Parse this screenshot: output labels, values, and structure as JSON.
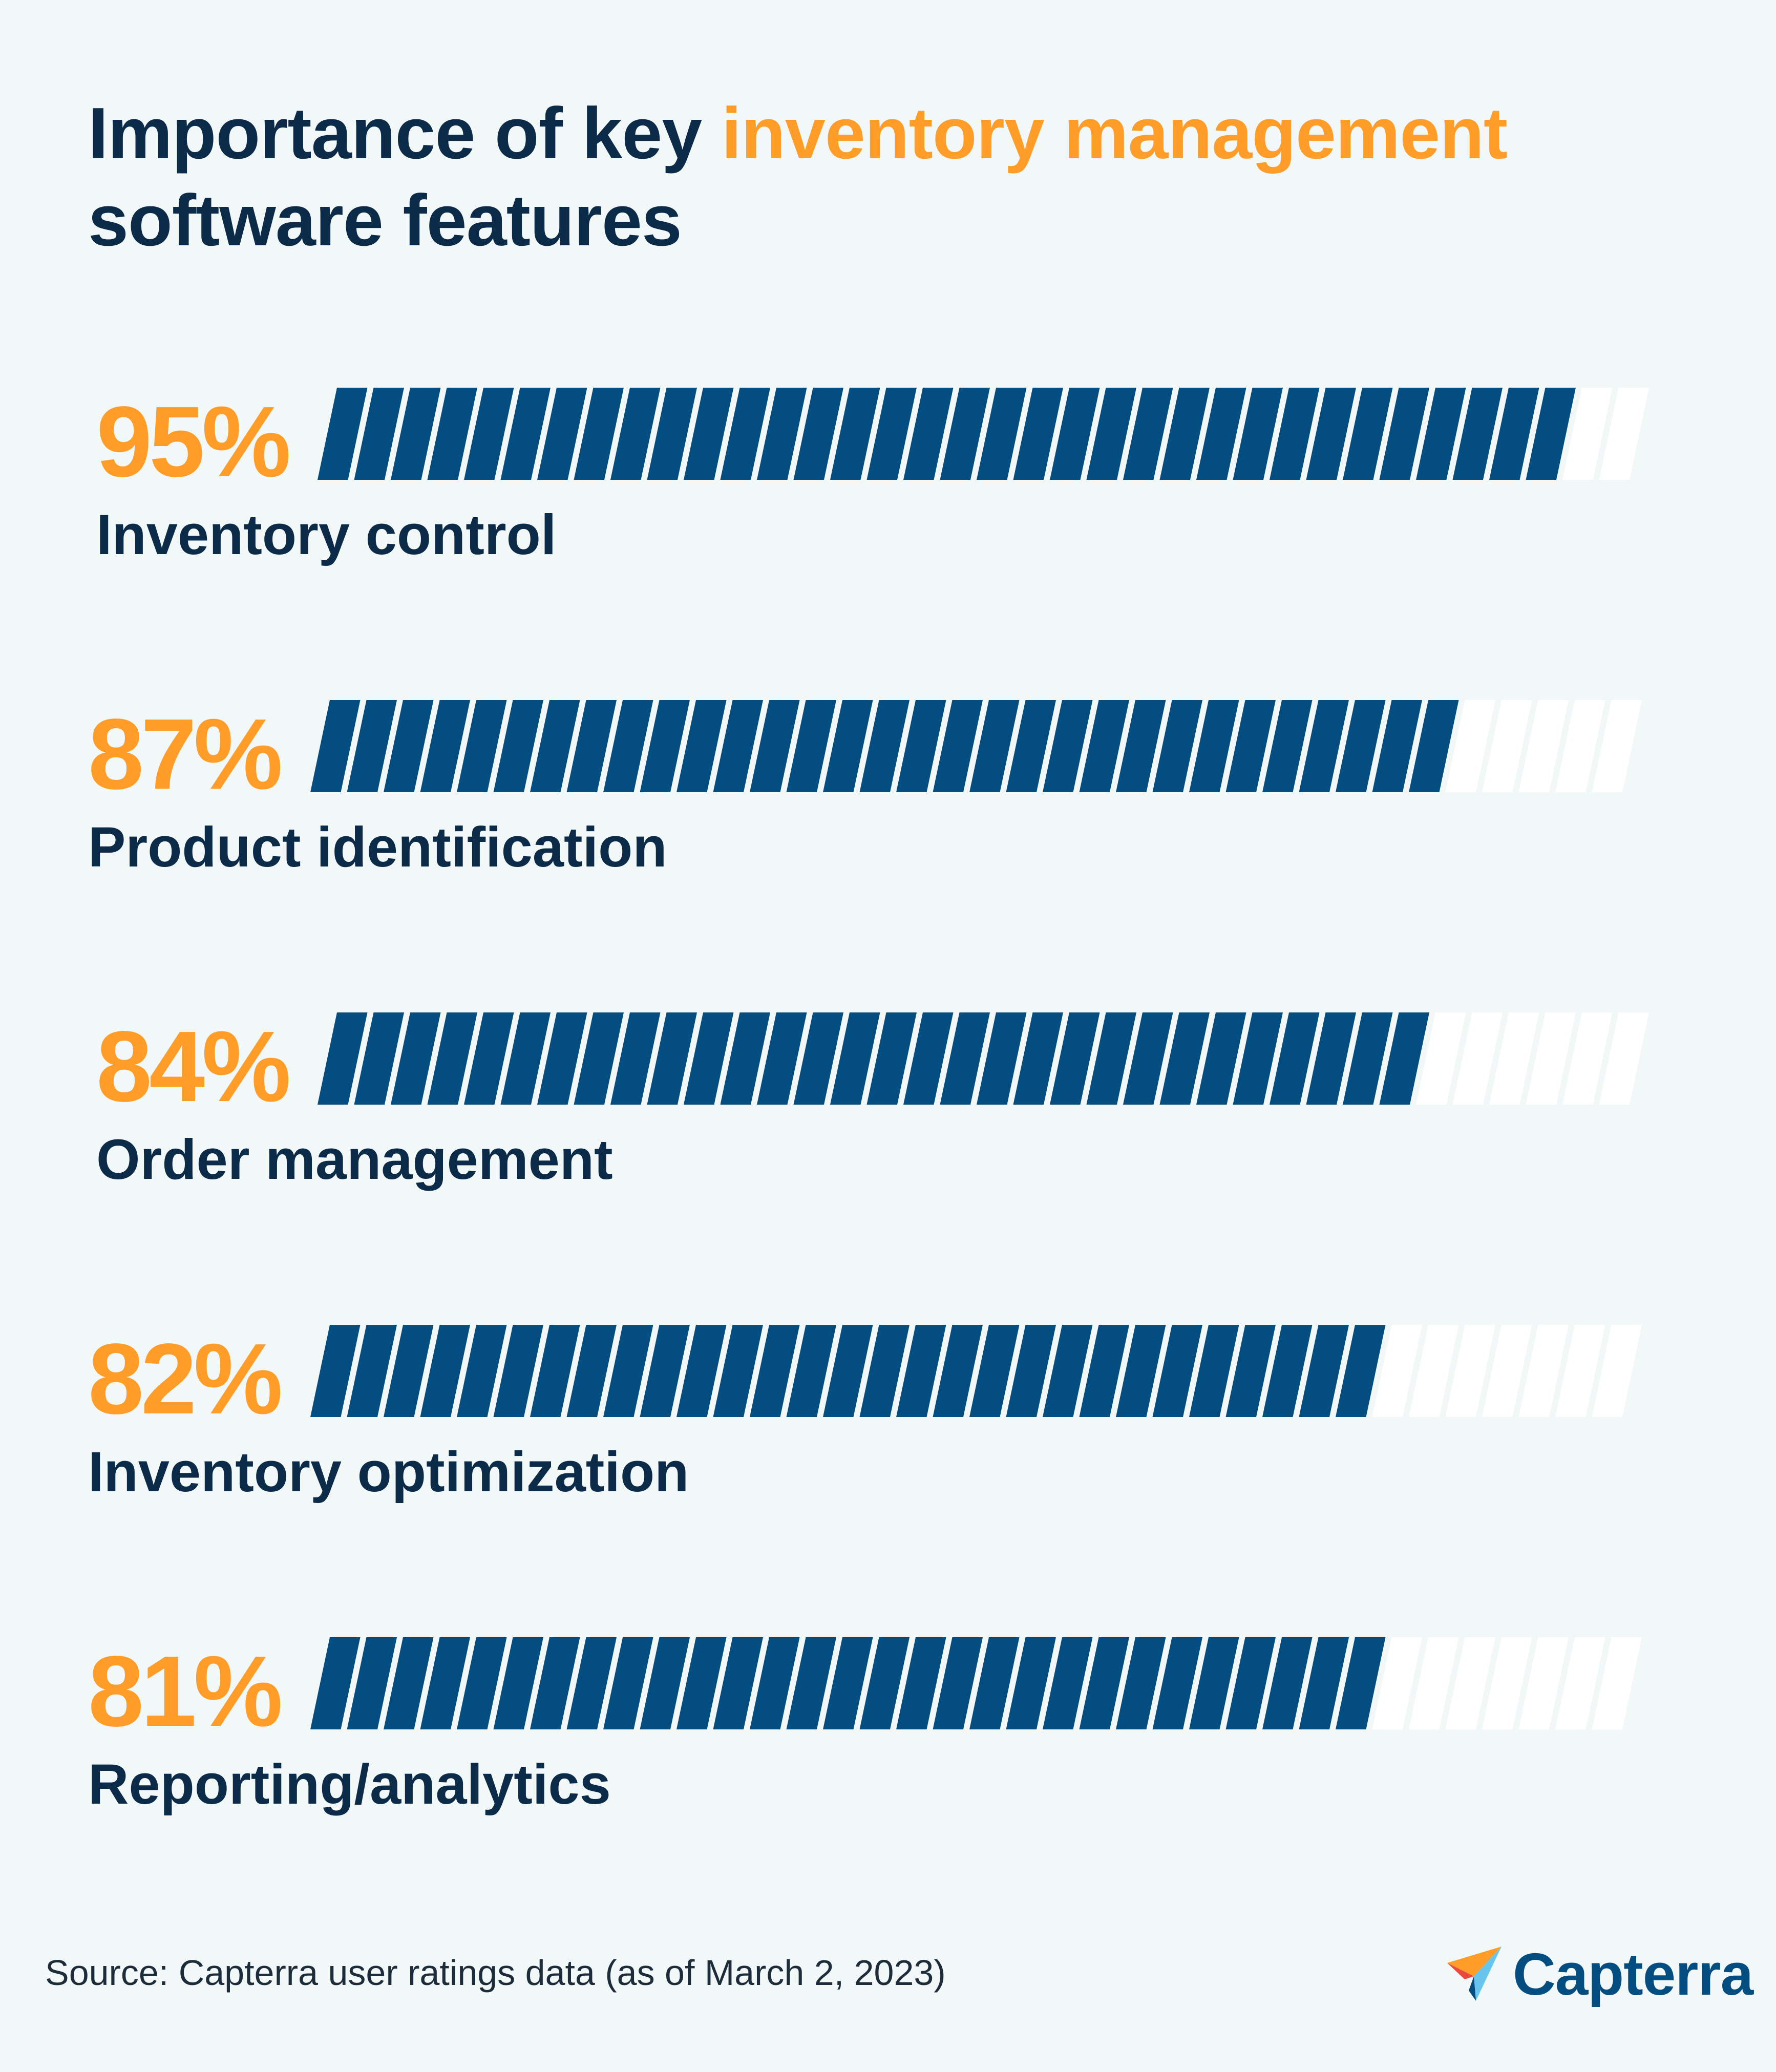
{
  "title": {
    "part1": "Importance of key ",
    "highlight": "inventory management",
    "part2": "software features"
  },
  "colors": {
    "background": "#f2f7f7",
    "bar_fill": "#044d80",
    "bar_empty": "#ffffff",
    "accent": "#ff9d28",
    "text": "#0c2b48"
  },
  "chart_data": {
    "type": "bar",
    "orientation": "horizontal",
    "categories": [
      "Inventory control",
      "Product identification",
      "Order management",
      "Inventory optimization",
      "Reporting/analytics"
    ],
    "values": [
      95,
      87,
      84,
      82,
      81
    ],
    "value_labels": [
      "95%",
      "87%",
      "84%",
      "82%",
      "81%"
    ],
    "unit": "%",
    "xlim": [
      0,
      100
    ],
    "title": "Importance of key inventory management software features",
    "grid": false
  },
  "source": "Source: Capterra user ratings data (as of March 2, 2023)",
  "logo": {
    "text": "Capterra",
    "icon": "capterra-arrow-icon"
  }
}
